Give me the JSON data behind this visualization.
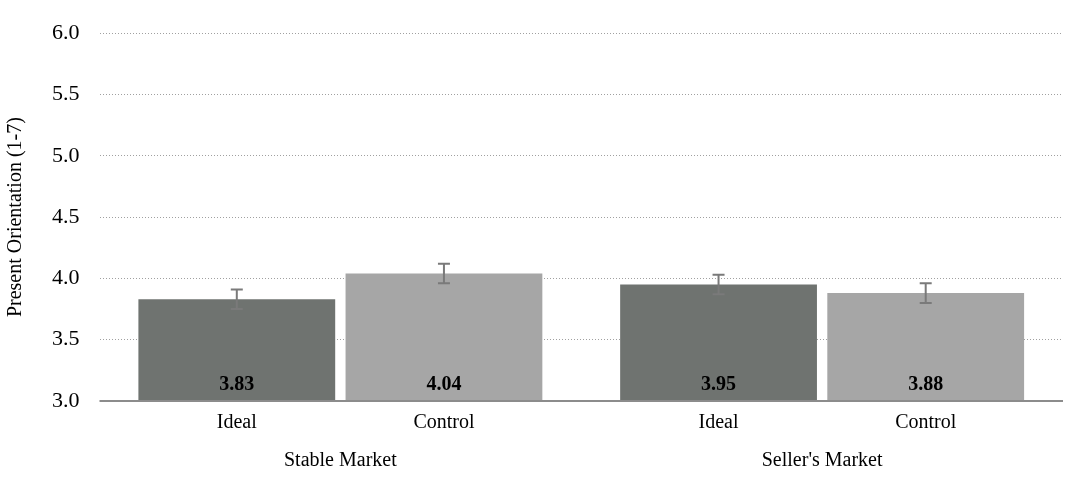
{
  "chart_data": {
    "type": "bar",
    "ylabel": "Present Orientation (1-7)",
    "categories": [
      "Stable Market",
      "Seller's Market"
    ],
    "series": [
      {
        "name": "Ideal",
        "color": "#6f7370",
        "values": [
          3.83,
          3.95
        ],
        "errors": [
          0.08,
          0.08
        ]
      },
      {
        "name": "Control",
        "color": "#a6a6a6",
        "values": [
          4.04,
          3.88
        ],
        "errors": [
          0.08,
          0.08
        ]
      }
    ],
    "ylim": [
      3,
      6
    ],
    "yticks": [
      {
        "value": 3,
        "label": "3.0"
      },
      {
        "value": 3.5,
        "label": "3.5"
      },
      {
        "value": 4,
        "label": "4.0"
      },
      {
        "value": 4.5,
        "label": "4.5"
      },
      {
        "value": 5,
        "label": "5.0"
      },
      {
        "value": 5.5,
        "label": "5.5"
      },
      {
        "value": 6,
        "label": "6.0"
      }
    ],
    "grid": "y",
    "data_labels": true,
    "legend": false
  }
}
